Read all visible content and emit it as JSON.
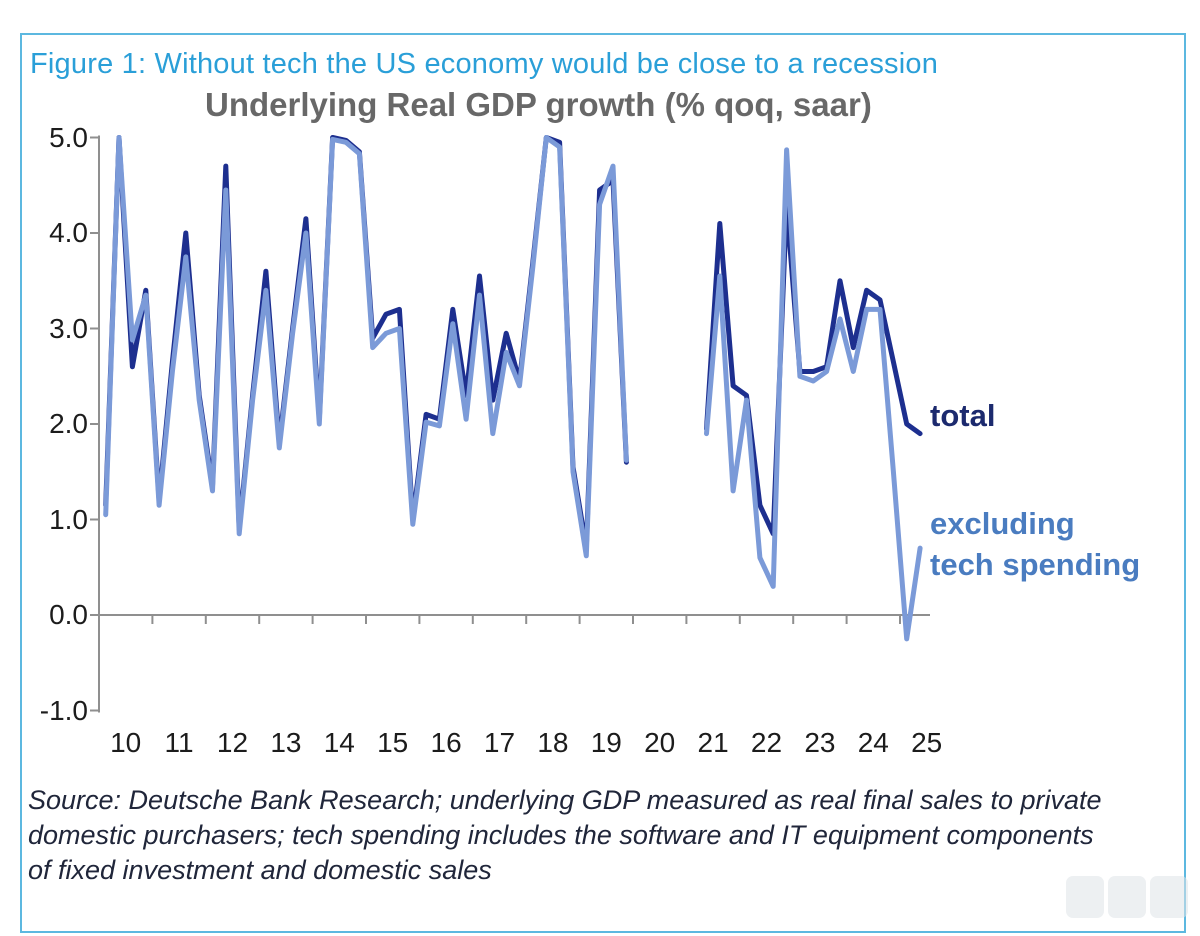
{
  "figure": {
    "caption": "Figure 1: Without tech the US economy would be close to a recession"
  },
  "colors": {
    "caption": "#2a9fd8",
    "frame_border": "#5cb8e0",
    "chart_title": "#686868",
    "axis": "#8f8f8f",
    "tick_labels": "#1c1c1c",
    "total_line": "#1d2f8f",
    "excluding_line": "#7b9ad8",
    "total_label": "#1c2a6e",
    "excluding_label": "#4a7cc0",
    "source_text": "#20263a"
  },
  "series_labels": {
    "total": "total",
    "excluding_line1": "excluding",
    "excluding_line2": "tech spending"
  },
  "source_lines": {
    "l1": "Source: Deutsche Bank Research; underlying GDP measured as real final sales to private",
    "l2": "domestic purchasers; tech spending includes the software and IT equipment components",
    "l3": "of fixed investment and domestic sales"
  },
  "chart_data": {
    "type": "line",
    "title": "Underlying Real GDP growth (% qoq, saar)",
    "x_start": "2010Q1",
    "x_end": "2025Q2",
    "x_frequency": "quarterly",
    "x_tick_labels": [
      "10",
      "11",
      "12",
      "13",
      "14",
      "15",
      "16",
      "17",
      "18",
      "19",
      "20",
      "21",
      "22",
      "23",
      "24",
      "25"
    ],
    "y_tick_labels": [
      "5.0",
      "4.0",
      "3.0",
      "2.0",
      "1.0",
      "0.0",
      "-1.0"
    ],
    "y_tick_values": [
      5,
      4,
      3,
      2,
      1,
      0,
      -1
    ],
    "ylim": [
      -1.0,
      5.0
    ],
    "grid": "zero-line only",
    "legend_position": "right of line ends, as direct labels",
    "gap": "no points plotted for 2020Q1-2021Q1 (off-scale pandemic quarters)",
    "series": [
      {
        "name": "total",
        "color": "#1d2f8f",
        "values": [
          1.15,
          5.0,
          2.6,
          3.4,
          1.2,
          2.65,
          4.0,
          2.3,
          1.35,
          4.7,
          0.9,
          2.3,
          3.6,
          1.8,
          3.0,
          4.15,
          2.05,
          5.0,
          4.97,
          4.85,
          2.9,
          3.15,
          3.2,
          1.0,
          2.1,
          2.05,
          3.2,
          2.3,
          3.55,
          2.25,
          2.95,
          2.45,
          3.7,
          5.0,
          4.95,
          1.55,
          0.7,
          4.45,
          4.55,
          1.6,
          null,
          null,
          null,
          null,
          null,
          1.95,
          4.1,
          2.4,
          2.3,
          1.15,
          0.85,
          4.3,
          2.55,
          2.55,
          2.6,
          3.5,
          2.8,
          3.4,
          3.3,
          2.65,
          2.0,
          1.9
        ]
      },
      {
        "name": "excluding tech spending",
        "color": "#7b9ad8",
        "values": [
          1.05,
          5.0,
          2.88,
          3.35,
          1.15,
          2.55,
          3.75,
          2.25,
          1.3,
          4.45,
          0.85,
          2.25,
          3.4,
          1.75,
          2.95,
          4.0,
          2.0,
          4.98,
          4.95,
          4.83,
          2.8,
          2.95,
          3.0,
          0.95,
          2.02,
          1.98,
          3.05,
          2.05,
          3.35,
          1.9,
          2.75,
          2.4,
          3.65,
          5.0,
          4.9,
          1.5,
          0.62,
          4.3,
          4.7,
          1.62,
          null,
          null,
          null,
          null,
          null,
          1.9,
          3.55,
          1.3,
          2.25,
          0.6,
          0.3,
          4.87,
          2.5,
          2.45,
          2.55,
          3.1,
          2.55,
          3.2,
          3.2,
          1.5,
          -0.25,
          0.7
        ]
      }
    ]
  }
}
